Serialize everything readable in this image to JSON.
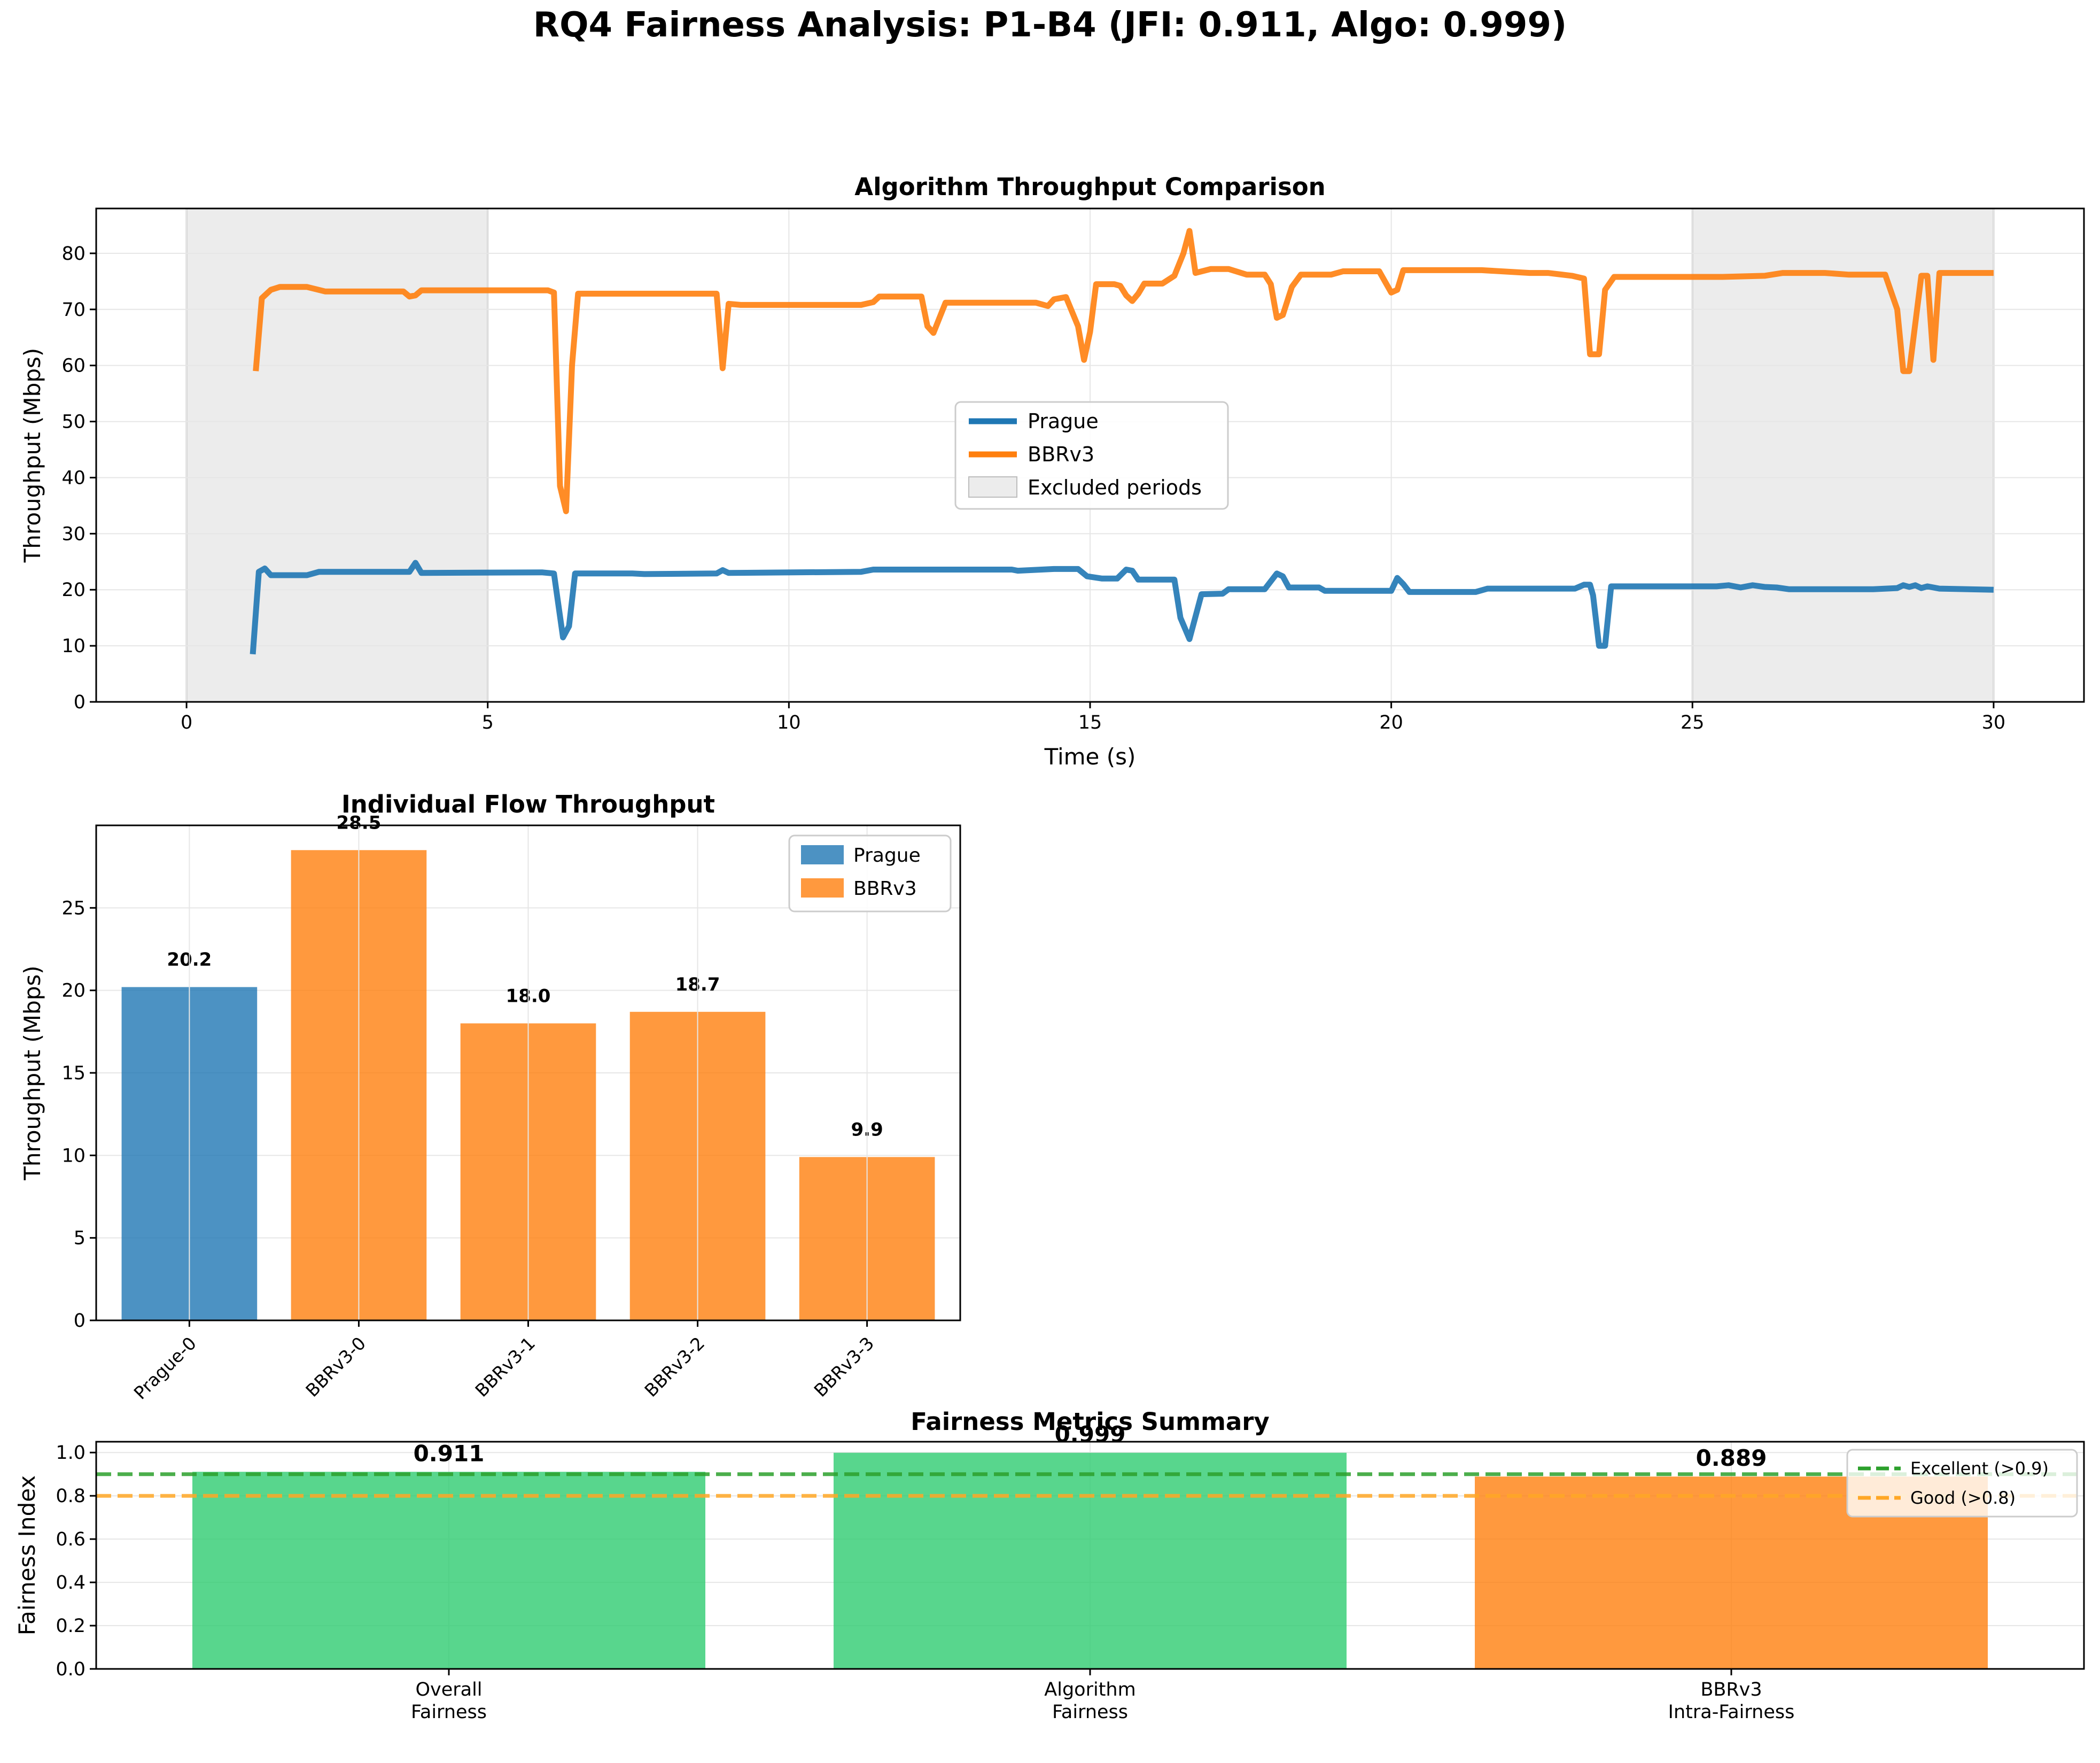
{
  "figure": {
    "title": "RQ4 Fairness Analysis: P1-B4 (JFI: 0.911, Algo: 0.999)"
  },
  "chart_data": [
    {
      "type": "line",
      "title": "Algorithm Throughput Comparison",
      "xlabel": "Time (s)",
      "ylabel": "Throughput (Mbps)",
      "xlim": [
        -1.5,
        31.5
      ],
      "ylim": [
        0,
        88
      ],
      "xticks": [
        0,
        5,
        10,
        15,
        20,
        25,
        30
      ],
      "yticks": [
        0,
        10,
        20,
        30,
        40,
        50,
        60,
        70,
        80
      ],
      "grid": true,
      "legend_placement": "center",
      "excluded_periods": [
        [
          0,
          5
        ],
        [
          25,
          30
        ]
      ],
      "excluded_label": "Excluded periods",
      "series": [
        {
          "name": "Prague",
          "color": "#1f77b4",
          "points": [
            [
              1.1,
              8.5
            ],
            [
              1.2,
              23.2
            ],
            [
              1.3,
              23.8
            ],
            [
              1.4,
              22.6
            ],
            [
              2.0,
              22.6
            ],
            [
              2.2,
              23.2
            ],
            [
              3.7,
              23.2
            ],
            [
              3.8,
              24.8
            ],
            [
              3.9,
              23.0
            ],
            [
              5.9,
              23.1
            ],
            [
              6.1,
              22.9
            ],
            [
              6.25,
              11.5
            ],
            [
              6.35,
              13.5
            ],
            [
              6.45,
              22.9
            ],
            [
              7.4,
              22.9
            ],
            [
              7.6,
              22.8
            ],
            [
              8.8,
              22.9
            ],
            [
              8.9,
              23.5
            ],
            [
              9.0,
              23.0
            ],
            [
              11.2,
              23.2
            ],
            [
              11.4,
              23.6
            ],
            [
              13.7,
              23.6
            ],
            [
              13.8,
              23.4
            ],
            [
              14.4,
              23.7
            ],
            [
              14.8,
              23.7
            ],
            [
              14.95,
              22.4
            ],
            [
              15.2,
              22.0
            ],
            [
              15.45,
              22.0
            ],
            [
              15.6,
              23.6
            ],
            [
              15.7,
              23.4
            ],
            [
              15.8,
              21.8
            ],
            [
              16.0,
              21.8
            ],
            [
              16.4,
              21.8
            ],
            [
              16.5,
              15.0
            ],
            [
              16.65,
              11.2
            ],
            [
              16.85,
              19.2
            ],
            [
              17.2,
              19.3
            ],
            [
              17.3,
              20.1
            ],
            [
              17.9,
              20.1
            ],
            [
              18.1,
              22.9
            ],
            [
              18.2,
              22.4
            ],
            [
              18.3,
              20.4
            ],
            [
              18.8,
              20.4
            ],
            [
              18.9,
              19.8
            ],
            [
              20.0,
              19.8
            ],
            [
              20.1,
              22.1
            ],
            [
              20.2,
              21.0
            ],
            [
              20.3,
              19.6
            ],
            [
              21.1,
              19.6
            ],
            [
              21.4,
              19.6
            ],
            [
              21.6,
              20.2
            ],
            [
              23.05,
              20.2
            ],
            [
              23.2,
              20.9
            ],
            [
              23.3,
              20.9
            ],
            [
              23.35,
              19.0
            ],
            [
              23.45,
              10.0
            ],
            [
              23.55,
              10.0
            ],
            [
              23.65,
              20.6
            ],
            [
              25.4,
              20.6
            ],
            [
              25.6,
              20.8
            ],
            [
              25.8,
              20.4
            ],
            [
              26.0,
              20.8
            ],
            [
              26.2,
              20.5
            ],
            [
              26.4,
              20.4
            ],
            [
              26.6,
              20.1
            ],
            [
              28.0,
              20.1
            ],
            [
              28.4,
              20.3
            ],
            [
              28.5,
              20.8
            ],
            [
              28.6,
              20.5
            ],
            [
              28.7,
              20.8
            ],
            [
              28.8,
              20.3
            ],
            [
              28.9,
              20.6
            ],
            [
              29.1,
              20.2
            ],
            [
              30.0,
              20.0
            ]
          ]
        },
        {
          "name": "BBRv3",
          "color": "#ff7f0e",
          "points": [
            [
              1.15,
              59.0
            ],
            [
              1.25,
              72.0
            ],
            [
              1.4,
              73.5
            ],
            [
              1.55,
              74.0
            ],
            [
              2.0,
              74.0
            ],
            [
              2.3,
              73.2
            ],
            [
              3.6,
              73.2
            ],
            [
              3.7,
              72.3
            ],
            [
              3.8,
              72.5
            ],
            [
              3.9,
              73.4
            ],
            [
              5.7,
              73.4
            ],
            [
              6.0,
              73.4
            ],
            [
              6.1,
              73.0
            ],
            [
              6.2,
              38.5
            ],
            [
              6.3,
              34.0
            ],
            [
              6.4,
              60.0
            ],
            [
              6.5,
              72.8
            ],
            [
              8.8,
              72.8
            ],
            [
              8.9,
              59.5
            ],
            [
              9.0,
              71.0
            ],
            [
              9.2,
              70.8
            ],
            [
              11.2,
              70.8
            ],
            [
              11.4,
              71.3
            ],
            [
              11.5,
              72.3
            ],
            [
              12.2,
              72.3
            ],
            [
              12.3,
              67.0
            ],
            [
              12.4,
              65.8
            ],
            [
              12.6,
              71.2
            ],
            [
              14.1,
              71.2
            ],
            [
              14.3,
              70.6
            ],
            [
              14.4,
              71.8
            ],
            [
              14.6,
              72.2
            ],
            [
              14.8,
              67.0
            ],
            [
              14.9,
              61.0
            ],
            [
              15.0,
              66.0
            ],
            [
              15.1,
              74.5
            ],
            [
              15.4,
              74.5
            ],
            [
              15.5,
              74.2
            ],
            [
              15.6,
              72.5
            ],
            [
              15.7,
              71.5
            ],
            [
              15.8,
              72.8
            ],
            [
              15.9,
              74.6
            ],
            [
              16.2,
              74.6
            ],
            [
              16.4,
              76.0
            ],
            [
              16.55,
              80.0
            ],
            [
              16.65,
              84.0
            ],
            [
              16.75,
              76.5
            ],
            [
              17.0,
              77.2
            ],
            [
              17.3,
              77.2
            ],
            [
              17.6,
              76.2
            ],
            [
              17.9,
              76.2
            ],
            [
              18.0,
              74.5
            ],
            [
              18.1,
              68.5
            ],
            [
              18.2,
              69.0
            ],
            [
              18.35,
              74.0
            ],
            [
              18.5,
              76.2
            ],
            [
              19.0,
              76.2
            ],
            [
              19.2,
              76.8
            ],
            [
              19.8,
              76.8
            ],
            [
              20.0,
              73.0
            ],
            [
              20.1,
              73.5
            ],
            [
              20.2,
              77.0
            ],
            [
              21.0,
              77.0
            ],
            [
              21.5,
              77.0
            ],
            [
              22.3,
              76.5
            ],
            [
              22.6,
              76.5
            ],
            [
              23.0,
              76.0
            ],
            [
              23.2,
              75.5
            ],
            [
              23.3,
              62.0
            ],
            [
              23.45,
              62.0
            ],
            [
              23.55,
              73.5
            ],
            [
              23.7,
              75.8
            ],
            [
              25.0,
              75.8
            ],
            [
              25.5,
              75.8
            ],
            [
              26.2,
              76.0
            ],
            [
              26.5,
              76.5
            ],
            [
              27.2,
              76.5
            ],
            [
              27.6,
              76.2
            ],
            [
              28.2,
              76.2
            ],
            [
              28.4,
              70.0
            ],
            [
              28.5,
              59.0
            ],
            [
              28.6,
              59.0
            ],
            [
              28.8,
              76.0
            ],
            [
              28.9,
              76.0
            ],
            [
              29.0,
              61.0
            ],
            [
              29.1,
              76.5
            ],
            [
              30.0,
              76.5
            ]
          ]
        }
      ]
    },
    {
      "type": "bar",
      "title": "Individual Flow Throughput",
      "ylabel": "Throughput (Mbps)",
      "ylim": [
        0,
        30
      ],
      "yticks": [
        0,
        5,
        10,
        15,
        20,
        25
      ],
      "grid": true,
      "legend_placement": "top-right",
      "legend": [
        {
          "name": "Prague",
          "color": "#1f77b4"
        },
        {
          "name": "BBRv3",
          "color": "#ff7f0e"
        }
      ],
      "categories": [
        "Prague-0",
        "BBRv3-0",
        "BBRv3-1",
        "BBRv3-2",
        "BBRv3-3"
      ],
      "values": [
        20.2,
        28.5,
        18.0,
        18.7,
        9.9
      ],
      "value_labels": [
        "20.2",
        "28.5",
        "18.0",
        "18.7",
        "9.9"
      ],
      "colors": [
        "#1f77b4",
        "#ff7f0e",
        "#ff7f0e",
        "#ff7f0e",
        "#ff7f0e"
      ]
    },
    {
      "type": "bar",
      "title": "Fairness Metrics Summary",
      "ylabel": "Fairness Index",
      "ylim": [
        0,
        1.05
      ],
      "yticks": [
        0.0,
        0.2,
        0.4,
        0.6,
        0.8,
        1.0
      ],
      "ytick_labels": [
        "0.0",
        "0.2",
        "0.4",
        "0.6",
        "0.8",
        "1.0"
      ],
      "grid": true,
      "legend_placement": "top-right",
      "categories": [
        [
          "Overall",
          "Fairness"
        ],
        [
          "Algorithm",
          "Fairness"
        ],
        [
          "BBRv3",
          "Intra-Fairness"
        ]
      ],
      "values": [
        0.911,
        0.999,
        0.889
      ],
      "value_labels": [
        "0.911",
        "0.999",
        "0.889"
      ],
      "colors": [
        "#2ecc71",
        "#2ecc71",
        "#ff7f0e"
      ],
      "reference_lines": [
        {
          "value": 0.9,
          "label": "Excellent (>0.9)",
          "color": "#2ca02c"
        },
        {
          "value": 0.8,
          "label": "Good (>0.8)",
          "color": "#ffa726"
        }
      ]
    }
  ]
}
